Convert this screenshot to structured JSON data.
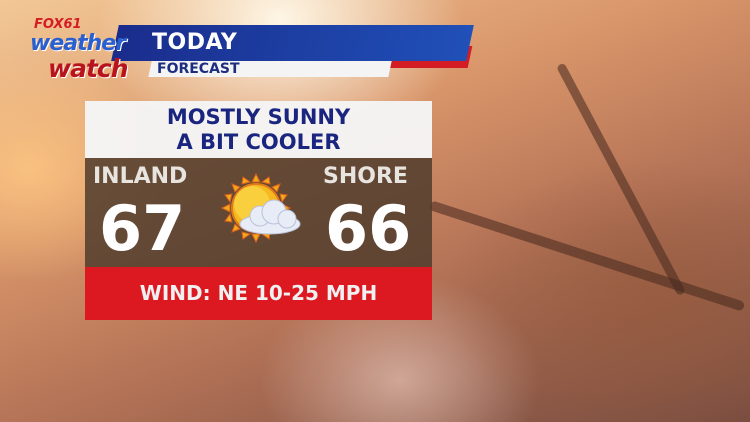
{
  "header": {
    "title": "TODAY",
    "subtitle": "FORECAST"
  },
  "logo": {
    "fox": "FOX61",
    "line1": "weather",
    "line2": "watch"
  },
  "summary": {
    "line1": "MOSTLY SUNNY",
    "line2": "A BIT COOLER"
  },
  "inland": {
    "label": "INLAND",
    "temp": "67"
  },
  "shore": {
    "label": "SHORE",
    "temp": "66"
  },
  "weather_icon": "partly-sunny-icon",
  "wind": "WIND: NE 10-25 MPH",
  "colors": {
    "blue": "#1a2c8c",
    "red": "#dc1820",
    "navy_text": "#1a2580"
  }
}
